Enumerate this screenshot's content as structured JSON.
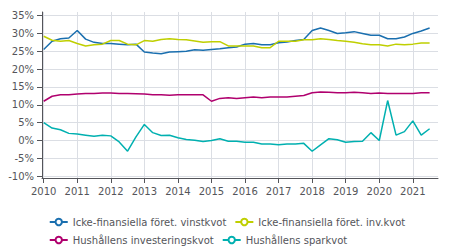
{
  "chart_data": {
    "type": "line",
    "x": [
      2010.0,
      2010.25,
      2010.5,
      2010.75,
      2011.0,
      2011.25,
      2011.5,
      2011.75,
      2012.0,
      2012.25,
      2012.5,
      2012.75,
      2013.0,
      2013.25,
      2013.5,
      2013.75,
      2014.0,
      2014.25,
      2014.5,
      2014.75,
      2015.0,
      2015.25,
      2015.5,
      2015.75,
      2016.0,
      2016.25,
      2016.5,
      2016.75,
      2017.0,
      2017.25,
      2017.5,
      2017.75,
      2018.0,
      2018.25,
      2018.5,
      2018.75,
      2019.0,
      2019.25,
      2019.5,
      2019.75,
      2020.0,
      2020.25,
      2020.5,
      2020.75,
      2021.0,
      2021.25,
      2021.5
    ],
    "series": [
      {
        "name": "Icke-finansiella föret. vinstkvot",
        "color": "#1a6faf",
        "values": [
          0.255,
          0.278,
          0.285,
          0.287,
          0.308,
          0.284,
          0.275,
          0.272,
          0.272,
          0.27,
          0.268,
          0.27,
          0.248,
          0.245,
          0.243,
          0.248,
          0.249,
          0.25,
          0.254,
          0.253,
          0.255,
          0.257,
          0.26,
          0.262,
          0.27,
          0.272,
          0.268,
          0.268,
          0.274,
          0.276,
          0.28,
          0.283,
          0.308,
          0.315,
          0.308,
          0.3,
          0.302,
          0.305,
          0.3,
          0.295,
          0.295,
          0.285,
          0.285,
          0.29,
          0.3,
          0.307,
          0.315
        ]
      },
      {
        "name": "Icke-finansiella föret. inv.kvot",
        "color": "#bfcf00",
        "values": [
          0.292,
          0.281,
          0.278,
          0.28,
          0.272,
          0.265,
          0.268,
          0.27,
          0.28,
          0.28,
          0.27,
          0.268,
          0.28,
          0.278,
          0.283,
          0.285,
          0.283,
          0.282,
          0.279,
          0.275,
          0.277,
          0.277,
          0.265,
          0.265,
          0.265,
          0.265,
          0.26,
          0.26,
          0.278,
          0.278,
          0.278,
          0.282,
          0.282,
          0.285,
          0.283,
          0.28,
          0.278,
          0.275,
          0.271,
          0.268,
          0.268,
          0.265,
          0.27,
          0.268,
          0.27,
          0.273,
          0.273
        ]
      },
      {
        "name": "Hushållens investeringskvot",
        "color": "#b0006e",
        "values": [
          0.11,
          0.124,
          0.128,
          0.128,
          0.13,
          0.132,
          0.132,
          0.133,
          0.133,
          0.132,
          0.132,
          0.131,
          0.13,
          0.128,
          0.128,
          0.127,
          0.128,
          0.128,
          0.128,
          0.128,
          0.11,
          0.118,
          0.12,
          0.118,
          0.12,
          0.122,
          0.12,
          0.122,
          0.122,
          0.122,
          0.124,
          0.126,
          0.134,
          0.136,
          0.135,
          0.134,
          0.134,
          0.135,
          0.134,
          0.132,
          0.133,
          0.132,
          0.132,
          0.132,
          0.132,
          0.134,
          0.134
        ]
      },
      {
        "name": "Hushållens sparkvot",
        "color": "#00b0b0",
        "values": [
          0.05,
          0.035,
          0.03,
          0.02,
          0.018,
          0.015,
          0.012,
          0.015,
          0.013,
          -0.004,
          -0.03,
          0.01,
          0.045,
          0.022,
          0.014,
          0.015,
          0.008,
          0.003,
          0.001,
          -0.003,
          0.0,
          0.005,
          -0.002,
          -0.002,
          -0.005,
          -0.005,
          -0.01,
          -0.01,
          -0.012,
          -0.01,
          -0.01,
          -0.008,
          -0.03,
          -0.012,
          0.005,
          0.002,
          -0.005,
          -0.003,
          -0.002,
          0.022,
          0.0,
          0.112,
          0.015,
          0.025,
          0.055,
          0.015,
          0.033
        ]
      }
    ],
    "xlim": [
      2009.95,
      2021.75
    ],
    "xticks": [
      2010,
      2011,
      2012,
      2013,
      2014,
      2015,
      2016,
      2017,
      2018,
      2019,
      2020,
      2021
    ],
    "ylim": [
      -0.105,
      0.36
    ],
    "yticks": [
      {
        "value": -0.1,
        "label": "-10%"
      },
      {
        "value": -0.05,
        "label": "-5%"
      },
      {
        "value": 0.0,
        "label": "0%"
      },
      {
        "value": 0.05,
        "label": "5%"
      },
      {
        "value": 0.1,
        "label": "10%"
      },
      {
        "value": 0.15,
        "label": "15%"
      },
      {
        "value": 0.2,
        "label": "20%"
      },
      {
        "value": 0.25,
        "label": "25%"
      },
      {
        "value": 0.3,
        "label": "30%"
      },
      {
        "value": 0.35,
        "label": "35%"
      }
    ],
    "grid": true,
    "legend": "bottom"
  }
}
